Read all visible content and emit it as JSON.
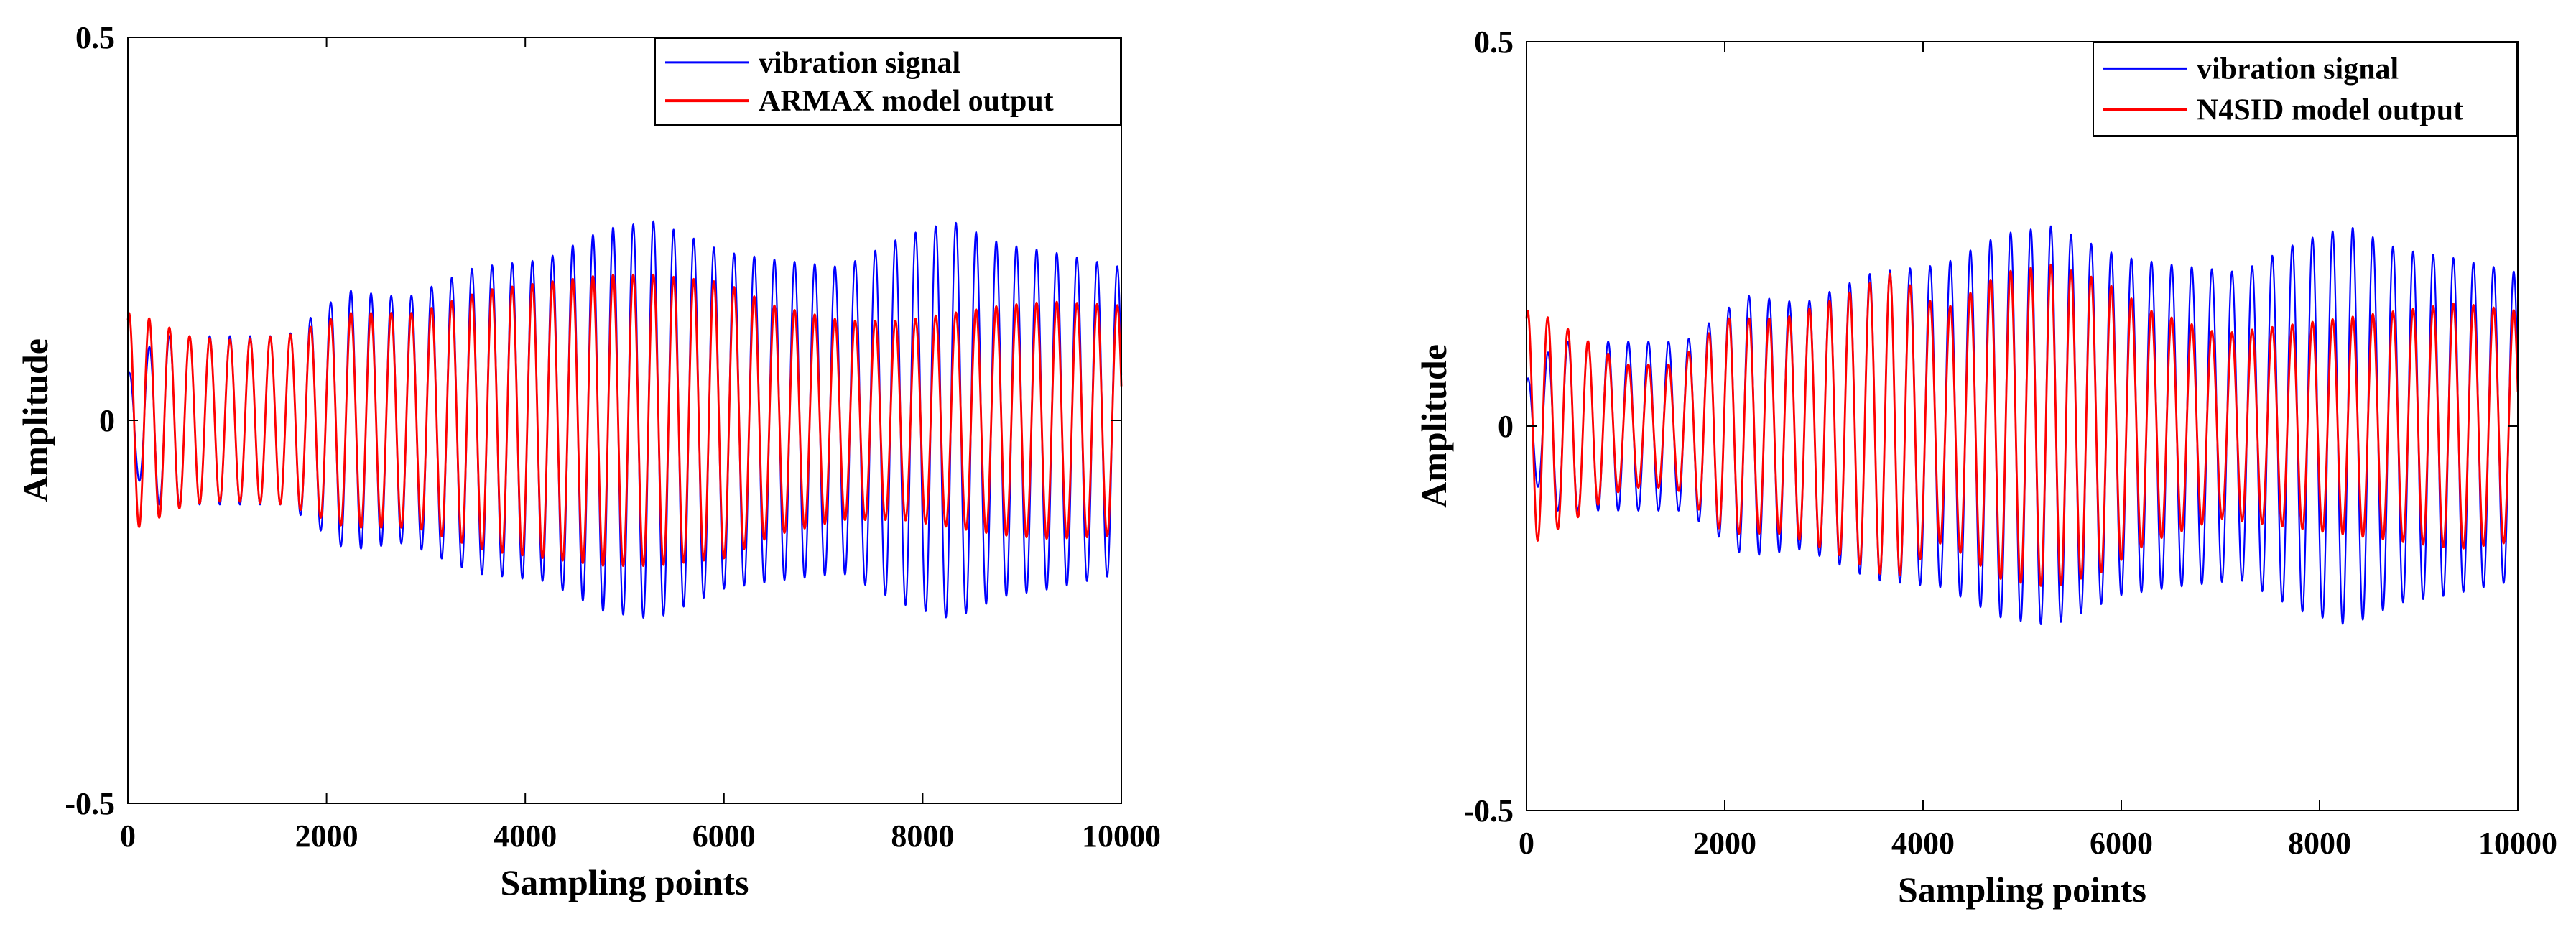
{
  "chart_data": [
    {
      "type": "line",
      "title": "",
      "xlabel": "Sampling points",
      "ylabel": "Amplitude",
      "xlim": [
        0,
        10000
      ],
      "ylim": [
        -0.5,
        0.5
      ],
      "x_ticks": [
        0,
        2000,
        4000,
        6000,
        8000,
        10000
      ],
      "y_ticks": [
        -0.5,
        0,
        0.5
      ],
      "x_tick_labels": [
        "0",
        "2000",
        "4000",
        "6000",
        "8000",
        "10000"
      ],
      "y_tick_labels": [
        "-0.5",
        "0",
        "0.5"
      ],
      "grid": false,
      "legend_position": "top-right",
      "oscillation_period": 203,
      "series": [
        {
          "name": "vibration signal",
          "color": "#0000ff",
          "envelope": {
            "x": [
              0,
              300,
              1000,
              1600,
              2200,
              2800,
              3500,
              4200,
              4800,
              5300,
              6000,
              6500,
              7200,
              7800,
              8300,
              8800,
              9300,
              10000
            ],
            "amplitude": [
              0.06,
              0.11,
              0.11,
              0.11,
              0.17,
              0.16,
              0.2,
              0.21,
              0.25,
              0.26,
              0.22,
              0.21,
              0.2,
              0.24,
              0.26,
              0.23,
              0.22,
              0.2
            ]
          }
        },
        {
          "name": "ARMAX model output",
          "color": "#ff0000",
          "envelope": {
            "x": [
              0,
              100,
              600,
              1000,
              1600,
              2200,
              2900,
              3600,
              4200,
              4800,
              5300,
              6000,
              6500,
              7200,
              7800,
              8300,
              8800,
              9300,
              10000
            ],
            "amplitude": [
              0.14,
              0.14,
              0.11,
              0.105,
              0.11,
              0.14,
              0.14,
              0.17,
              0.18,
              0.19,
              0.19,
              0.18,
              0.15,
              0.13,
              0.13,
              0.14,
              0.15,
              0.155,
              0.15
            ]
          }
        }
      ]
    },
    {
      "type": "line",
      "title": "",
      "xlabel": "Sampling points",
      "ylabel": "Amplitude",
      "xlim": [
        0,
        10000
      ],
      "ylim": [
        -0.5,
        0.5
      ],
      "x_ticks": [
        0,
        2000,
        4000,
        6000,
        8000,
        10000
      ],
      "y_ticks": [
        -0.5,
        0,
        0.5
      ],
      "x_tick_labels": [
        "0",
        "2000",
        "4000",
        "6000",
        "8000",
        "10000"
      ],
      "y_tick_labels": [
        "-0.5",
        "0",
        "0.5"
      ],
      "grid": false,
      "legend_position": "top-right",
      "oscillation_period": 203,
      "series": [
        {
          "name": "vibration signal",
          "color": "#0000ff",
          "envelope": {
            "x": [
              0,
              300,
              1000,
              1600,
              2200,
              2800,
              3500,
              4200,
              4800,
              5300,
              6000,
              6500,
              7200,
              7800,
              8300,
              8800,
              9300,
              10000
            ],
            "amplitude": [
              0.06,
              0.11,
              0.11,
              0.11,
              0.17,
              0.16,
              0.2,
              0.21,
              0.25,
              0.26,
              0.22,
              0.21,
              0.2,
              0.24,
              0.26,
              0.23,
              0.22,
              0.2
            ]
          }
        },
        {
          "name": "N4SID model output",
          "color": "#ff0000",
          "envelope": {
            "x": [
              0,
              100,
              500,
              1000,
              1500,
              2000,
              2600,
              3200,
              3700,
              4200,
              4800,
              5300,
              5800,
              6300,
              7000,
              7600,
              8200,
              8800,
              9400,
              10000
            ],
            "amplitude": [
              0.15,
              0.15,
              0.12,
              0.08,
              0.08,
              0.14,
              0.14,
              0.17,
              0.2,
              0.15,
              0.2,
              0.21,
              0.19,
              0.15,
              0.12,
              0.13,
              0.14,
              0.15,
              0.16,
              0.15
            ]
          }
        }
      ]
    }
  ]
}
